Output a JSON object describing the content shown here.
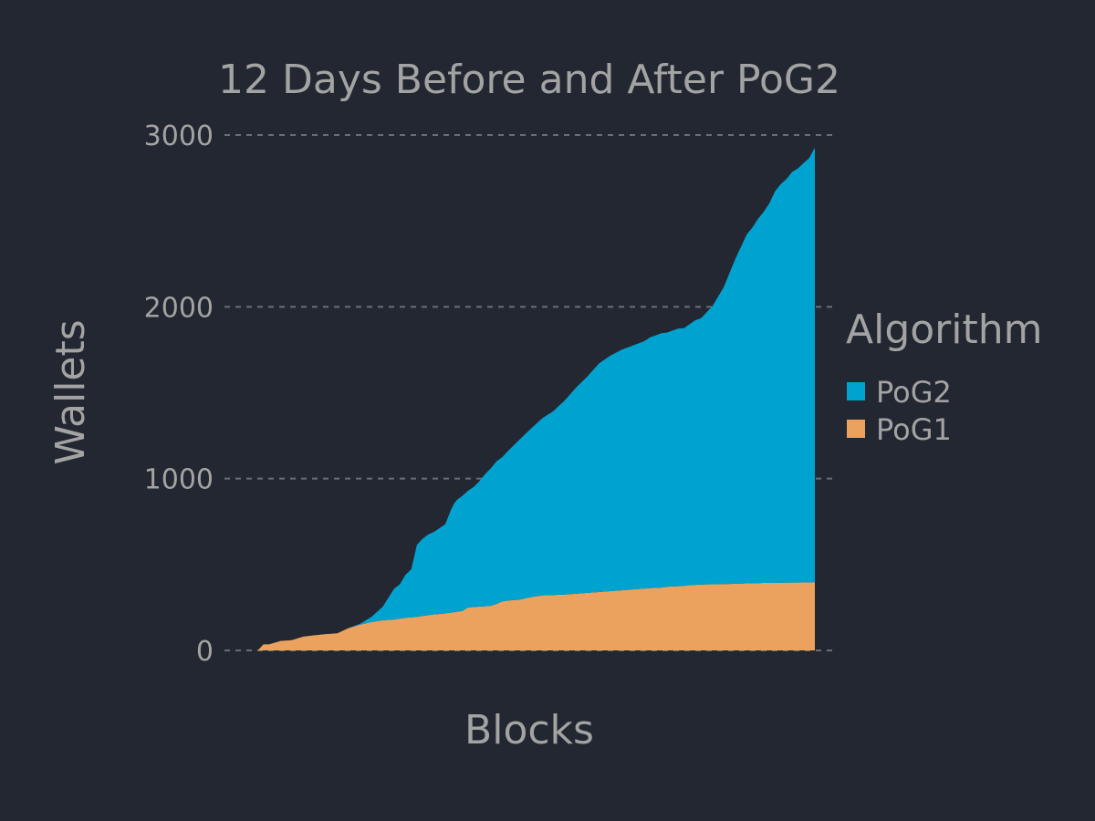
{
  "chart_data": {
    "type": "area",
    "stacked": true,
    "title": "12 Days Before and After PoG2",
    "xlabel": "Blocks",
    "ylabel": "Wallets",
    "ylim": [
      0,
      3000
    ],
    "yticks": [
      0,
      1000,
      2000,
      3000
    ],
    "xlim": [
      0,
      100
    ],
    "grid": true,
    "legend": {
      "title": "Algorithm",
      "placement": "right"
    },
    "x": [
      0,
      2,
      3,
      4,
      6,
      8,
      10,
      12,
      14,
      16,
      18,
      20,
      22,
      24,
      25,
      26,
      27,
      28,
      29,
      30,
      31,
      32,
      33,
      34,
      35,
      35.5,
      36,
      36.5,
      37,
      38,
      39,
      40,
      41,
      42,
      43,
      44,
      45,
      46,
      48,
      50,
      52,
      53,
      54,
      55,
      56,
      58,
      60,
      62,
      64,
      66,
      68,
      70,
      71,
      72,
      73,
      74,
      75,
      76,
      77,
      78,
      79,
      80,
      82,
      84,
      85,
      86,
      87,
      88,
      89,
      90,
      91,
      92,
      93,
      94,
      95,
      96,
      97,
      98,
      99,
      100
    ],
    "series": [
      {
        "name": "PoG1",
        "color": "#eba25e",
        "values": [
          0,
          0,
          35,
          35,
          55,
          60,
          80,
          88,
          95,
          100,
          130,
          150,
          165,
          175,
          178,
          180,
          185,
          190,
          192,
          195,
          200,
          205,
          210,
          212,
          215,
          218,
          220,
          222,
          225,
          230,
          250,
          252,
          255,
          257,
          260,
          270,
          285,
          290,
          295,
          310,
          320,
          322,
          323,
          324,
          325,
          330,
          335,
          340,
          345,
          350,
          355,
          360,
          362,
          364,
          366,
          370,
          372,
          374,
          376,
          380,
          382,
          384,
          385,
          386,
          387,
          388,
          389,
          390,
          391,
          392,
          393,
          393,
          393,
          394,
          394,
          395,
          395,
          396,
          396,
          397
        ]
      },
      {
        "name": "PoG2",
        "color": "#00a3d0",
        "values": [
          0,
          0,
          0,
          0,
          0,
          0,
          0,
          0,
          0,
          0,
          0,
          5,
          30,
          80,
          130,
          180,
          200,
          250,
          280,
          420,
          450,
          470,
          480,
          500,
          520,
          560,
          600,
          630,
          650,
          670,
          680,
          700,
          730,
          770,
          800,
          830,
          840,
          870,
          930,
          980,
          1030,
          1050,
          1070,
          1100,
          1130,
          1200,
          1260,
          1330,
          1370,
          1400,
          1420,
          1440,
          1460,
          1470,
          1480,
          1480,
          1490,
          1500,
          1500,
          1520,
          1540,
          1550,
          1620,
          1730,
          1810,
          1890,
          1960,
          2030,
          2070,
          2120,
          2160,
          2210,
          2280,
          2320,
          2350,
          2390,
          2410,
          2440,
          2470,
          2530
        ]
      }
    ]
  }
}
